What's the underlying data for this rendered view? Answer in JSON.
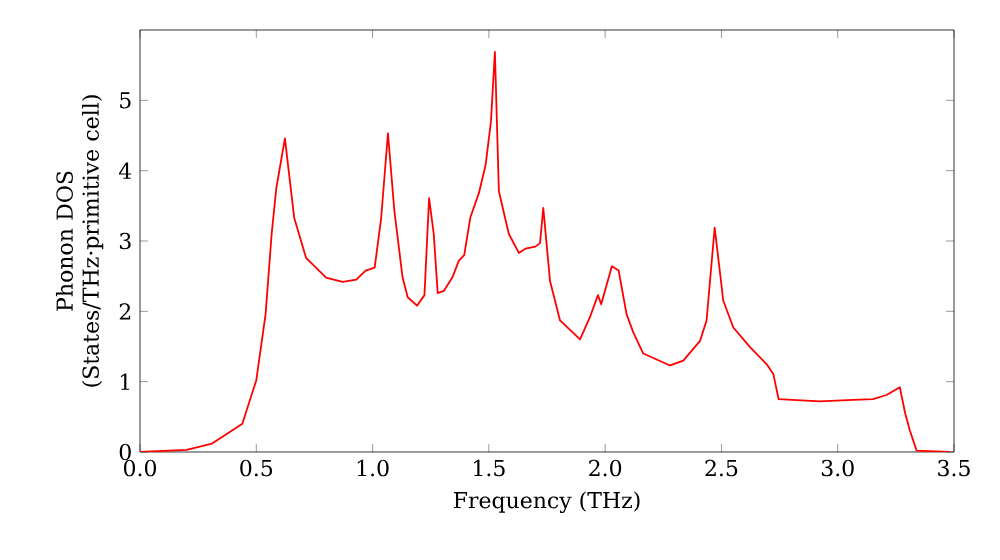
{
  "chart_data": {
    "type": "line",
    "xlabel": "Frequency (THz)",
    "ylabel": "Phonon DOS\n(States/THz·primitive cell)",
    "xlim": [
      0,
      3.5
    ],
    "ylim": [
      0,
      6
    ],
    "xticks": [
      {
        "value": 0,
        "label": "0.0"
      },
      {
        "value": 0.5,
        "label": "0.5"
      },
      {
        "value": 1,
        "label": "1.0"
      },
      {
        "value": 1.5,
        "label": "1.5"
      },
      {
        "value": 2,
        "label": "2.0"
      },
      {
        "value": 2.5,
        "label": "2.5"
      },
      {
        "value": 3,
        "label": "3.0"
      },
      {
        "value": 3.5,
        "label": "3.5"
      }
    ],
    "yticks": [
      0,
      1,
      2,
      3,
      4,
      5
    ],
    "grid": false,
    "marker": "none",
    "line_style": "solid",
    "series": [
      {
        "color": "#ff0000",
        "x": [
          0,
          0.2,
          0.31,
          0.44,
          0.5,
          0.54,
          0.566,
          0.586,
          0.623,
          0.663,
          0.714,
          0.8,
          0.871,
          0.93,
          0.97,
          1.009,
          1.037,
          1.066,
          1.094,
          1.129,
          1.151,
          1.191,
          1.223,
          1.243,
          1.263,
          1.28,
          1.306,
          1.343,
          1.371,
          1.394,
          1.42,
          1.457,
          1.486,
          1.509,
          1.526,
          1.543,
          1.566,
          1.586,
          1.629,
          1.657,
          1.7,
          1.72,
          1.734,
          1.763,
          1.806,
          1.892,
          1.935,
          1.969,
          1.983,
          2.029,
          2.058,
          2.092,
          2.121,
          2.164,
          2.279,
          2.336,
          2.408,
          2.436,
          2.471,
          2.508,
          2.551,
          2.623,
          2.694,
          2.723,
          2.746,
          2.923,
          3.066,
          3.152,
          3.21,
          3.267,
          3.29,
          3.31,
          3.339,
          3.482
        ],
        "values": [
          0,
          0.03,
          0.12,
          0.4,
          1.02,
          1.96,
          3.1,
          3.75,
          4.46,
          3.33,
          2.76,
          2.48,
          2.42,
          2.45,
          2.58,
          2.62,
          3.33,
          4.53,
          3.42,
          2.48,
          2.2,
          2.08,
          2.23,
          3.61,
          3.1,
          2.26,
          2.29,
          2.48,
          2.72,
          2.8,
          3.33,
          3.68,
          4.08,
          4.7,
          5.69,
          3.71,
          3.38,
          3.1,
          2.83,
          2.89,
          2.92,
          2.97,
          3.47,
          2.43,
          1.87,
          1.6,
          1.92,
          2.23,
          2.1,
          2.64,
          2.58,
          1.96,
          1.7,
          1.4,
          1.23,
          1.3,
          1.58,
          1.87,
          3.19,
          2.15,
          1.77,
          1.49,
          1.25,
          1.11,
          0.75,
          0.72,
          0.74,
          0.75,
          0.81,
          0.92,
          0.55,
          0.31,
          0.02,
          0
        ]
      }
    ]
  }
}
